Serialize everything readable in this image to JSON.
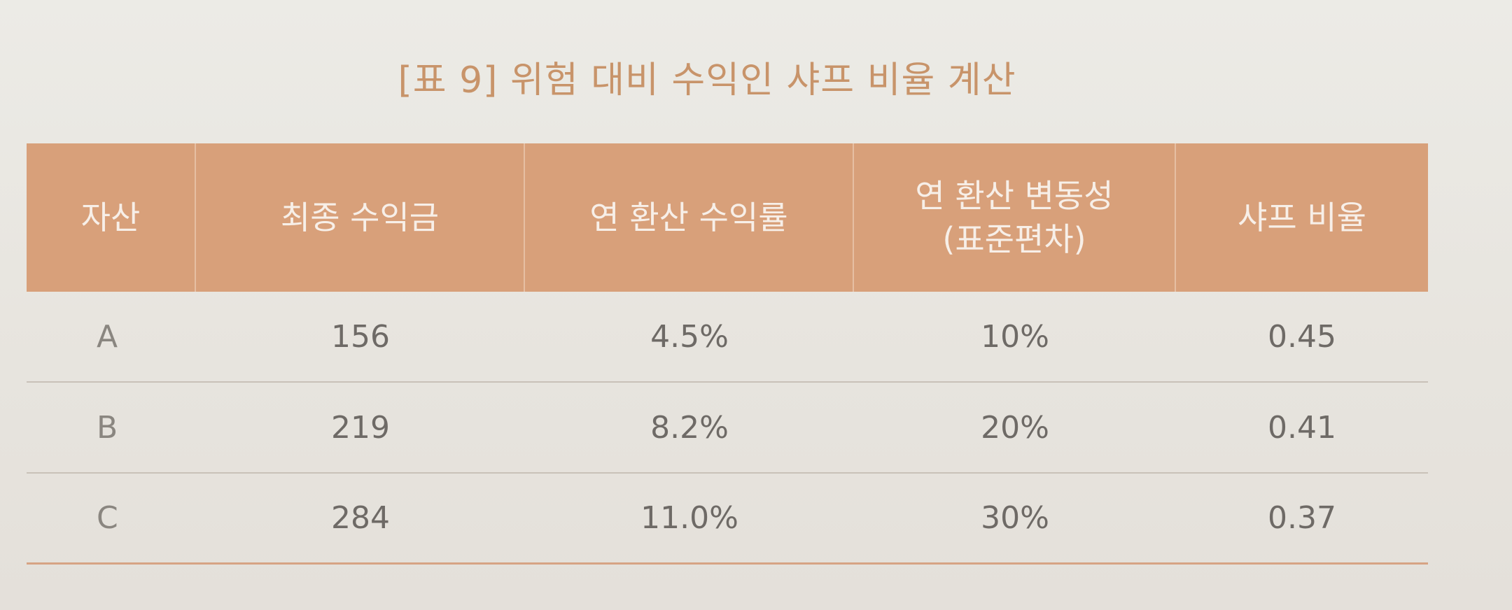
{
  "caption": "[표 9] 위험 대비 수익인 샤프 비율 계산",
  "table": {
    "headers": [
      [
        "자산"
      ],
      [
        "최종 수익금"
      ],
      [
        "연 환산 수익률"
      ],
      [
        "연 환산 변동성",
        "(표준편차)"
      ],
      [
        "샤프 비율"
      ]
    ],
    "rows": [
      [
        "A",
        "156",
        "4.5%",
        "10%",
        "0.45"
      ],
      [
        "B",
        "219",
        "8.2%",
        "20%",
        "0.41"
      ],
      [
        "C",
        "284",
        "11.0%",
        "30%",
        "0.37"
      ]
    ]
  },
  "colors": {
    "header_bg": "#d8a07a",
    "caption": "#c8946a",
    "paper": "#e9e5e0"
  }
}
